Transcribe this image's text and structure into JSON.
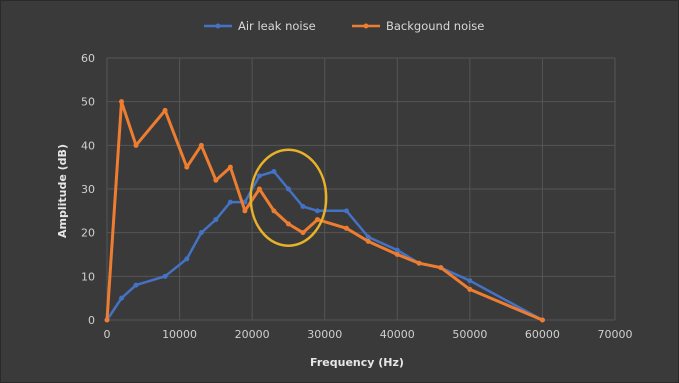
{
  "chart_data": {
    "type": "line",
    "title": "",
    "xlabel": "Frequency (Hz)",
    "ylabel": "Amplitude (dB)",
    "xlim": [
      0,
      70000
    ],
    "ylim": [
      0,
      60
    ],
    "xticks": [
      "0",
      "10000",
      "20000",
      "30000",
      "40000",
      "50000",
      "60000",
      "70000"
    ],
    "yticks": [
      "0",
      "10",
      "20",
      "30",
      "40",
      "50",
      "60"
    ],
    "grid": true,
    "legend_position": "top",
    "series": [
      {
        "name": "Air leak noise",
        "color": "#4472c4",
        "x": [
          0,
          2000,
          4000,
          8000,
          11000,
          13000,
          15000,
          17000,
          19000,
          21000,
          23000,
          25000,
          27000,
          29000,
          33000,
          36000,
          40000,
          43000,
          46000,
          50000,
          60000
        ],
        "y": [
          0,
          5,
          8,
          10,
          14,
          20,
          23,
          27,
          27,
          33,
          34,
          30,
          26,
          25,
          25,
          19,
          16,
          13,
          12,
          9,
          0
        ]
      },
      {
        "name": "Backgound noise",
        "color": "#ed7d31",
        "x": [
          0,
          2000,
          4000,
          8000,
          11000,
          13000,
          15000,
          17000,
          19000,
          21000,
          23000,
          25000,
          27000,
          29000,
          33000,
          36000,
          40000,
          43000,
          46000,
          50000,
          60000
        ],
        "y": [
          0,
          50,
          40,
          48,
          35,
          40,
          32,
          35,
          25,
          30,
          25,
          22,
          20,
          23,
          21,
          18,
          15,
          13,
          12,
          7,
          0
        ]
      }
    ],
    "annotation": {
      "shape": "circle",
      "color": "#e8b12a",
      "center": [
        25000,
        28
      ],
      "radius_x": 5200,
      "radius_y": 11
    }
  }
}
